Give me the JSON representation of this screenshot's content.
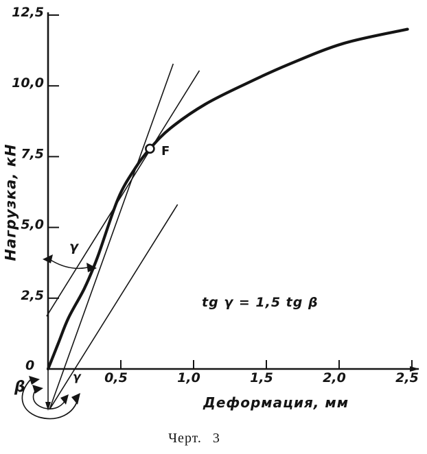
{
  "figure": {
    "caption": "Черт. 3"
  },
  "annotations": {
    "formula": "tg γ = 1,5 tg β",
    "point_label": "F",
    "angle_gamma": "γ",
    "angle_beta": "β",
    "origin_label": "0"
  },
  "chart_data": {
    "type": "line",
    "title": "Черт. 3",
    "xlabel": "Деформация, мм",
    "ylabel": "Нагрузка, кН",
    "xlim": [
      0,
      2.5
    ],
    "ylim": [
      0,
      12.5
    ],
    "grid": false,
    "x_ticks": [
      {
        "label": "0,5",
        "value": 0.5
      },
      {
        "label": "1,0",
        "value": 1.0
      },
      {
        "label": "1,5",
        "value": 1.5
      },
      {
        "label": "2,0",
        "value": 2.0
      },
      {
        "label": "2,5",
        "value": 2.5
      }
    ],
    "y_ticks": [
      {
        "label": "2,5",
        "value": 2.5
      },
      {
        "label": "5,0",
        "value": 5.0
      },
      {
        "label": "7,5",
        "value": 7.5
      },
      {
        "label": "10,0",
        "value": 10.0
      },
      {
        "label": "12,5",
        "value": 12.5
      }
    ],
    "series": [
      {
        "name": "load-deformation curve",
        "points": [
          [
            0,
            0
          ],
          [
            0.07,
            0.9
          ],
          [
            0.14,
            1.8
          ],
          [
            0.25,
            2.85
          ],
          [
            0.34,
            3.95
          ],
          [
            0.48,
            6.0
          ],
          [
            0.6,
            7.1
          ],
          [
            0.7,
            7.78
          ],
          [
            0.84,
            8.5
          ],
          [
            1.08,
            9.35
          ],
          [
            1.37,
            10.1
          ],
          [
            1.65,
            10.75
          ],
          [
            2.03,
            11.5
          ],
          [
            2.47,
            12.0
          ]
        ]
      }
    ],
    "construction_lines": [
      {
        "name": "beta-tangent-line",
        "from": [
          0.01,
          -1.43
        ],
        "to": [
          0.86,
          10.78
        ]
      },
      {
        "name": "gamma-secant-line",
        "from": [
          -0.01,
          1.86
        ],
        "to": [
          1.04,
          10.54
        ]
      },
      {
        "name": "gamma-construction-line",
        "from": [
          0.01,
          -1.43
        ],
        "to": [
          0.89,
          5.81
        ]
      }
    ],
    "point_F": {
      "x": 0.7,
      "y": 7.78,
      "label": "F"
    }
  }
}
